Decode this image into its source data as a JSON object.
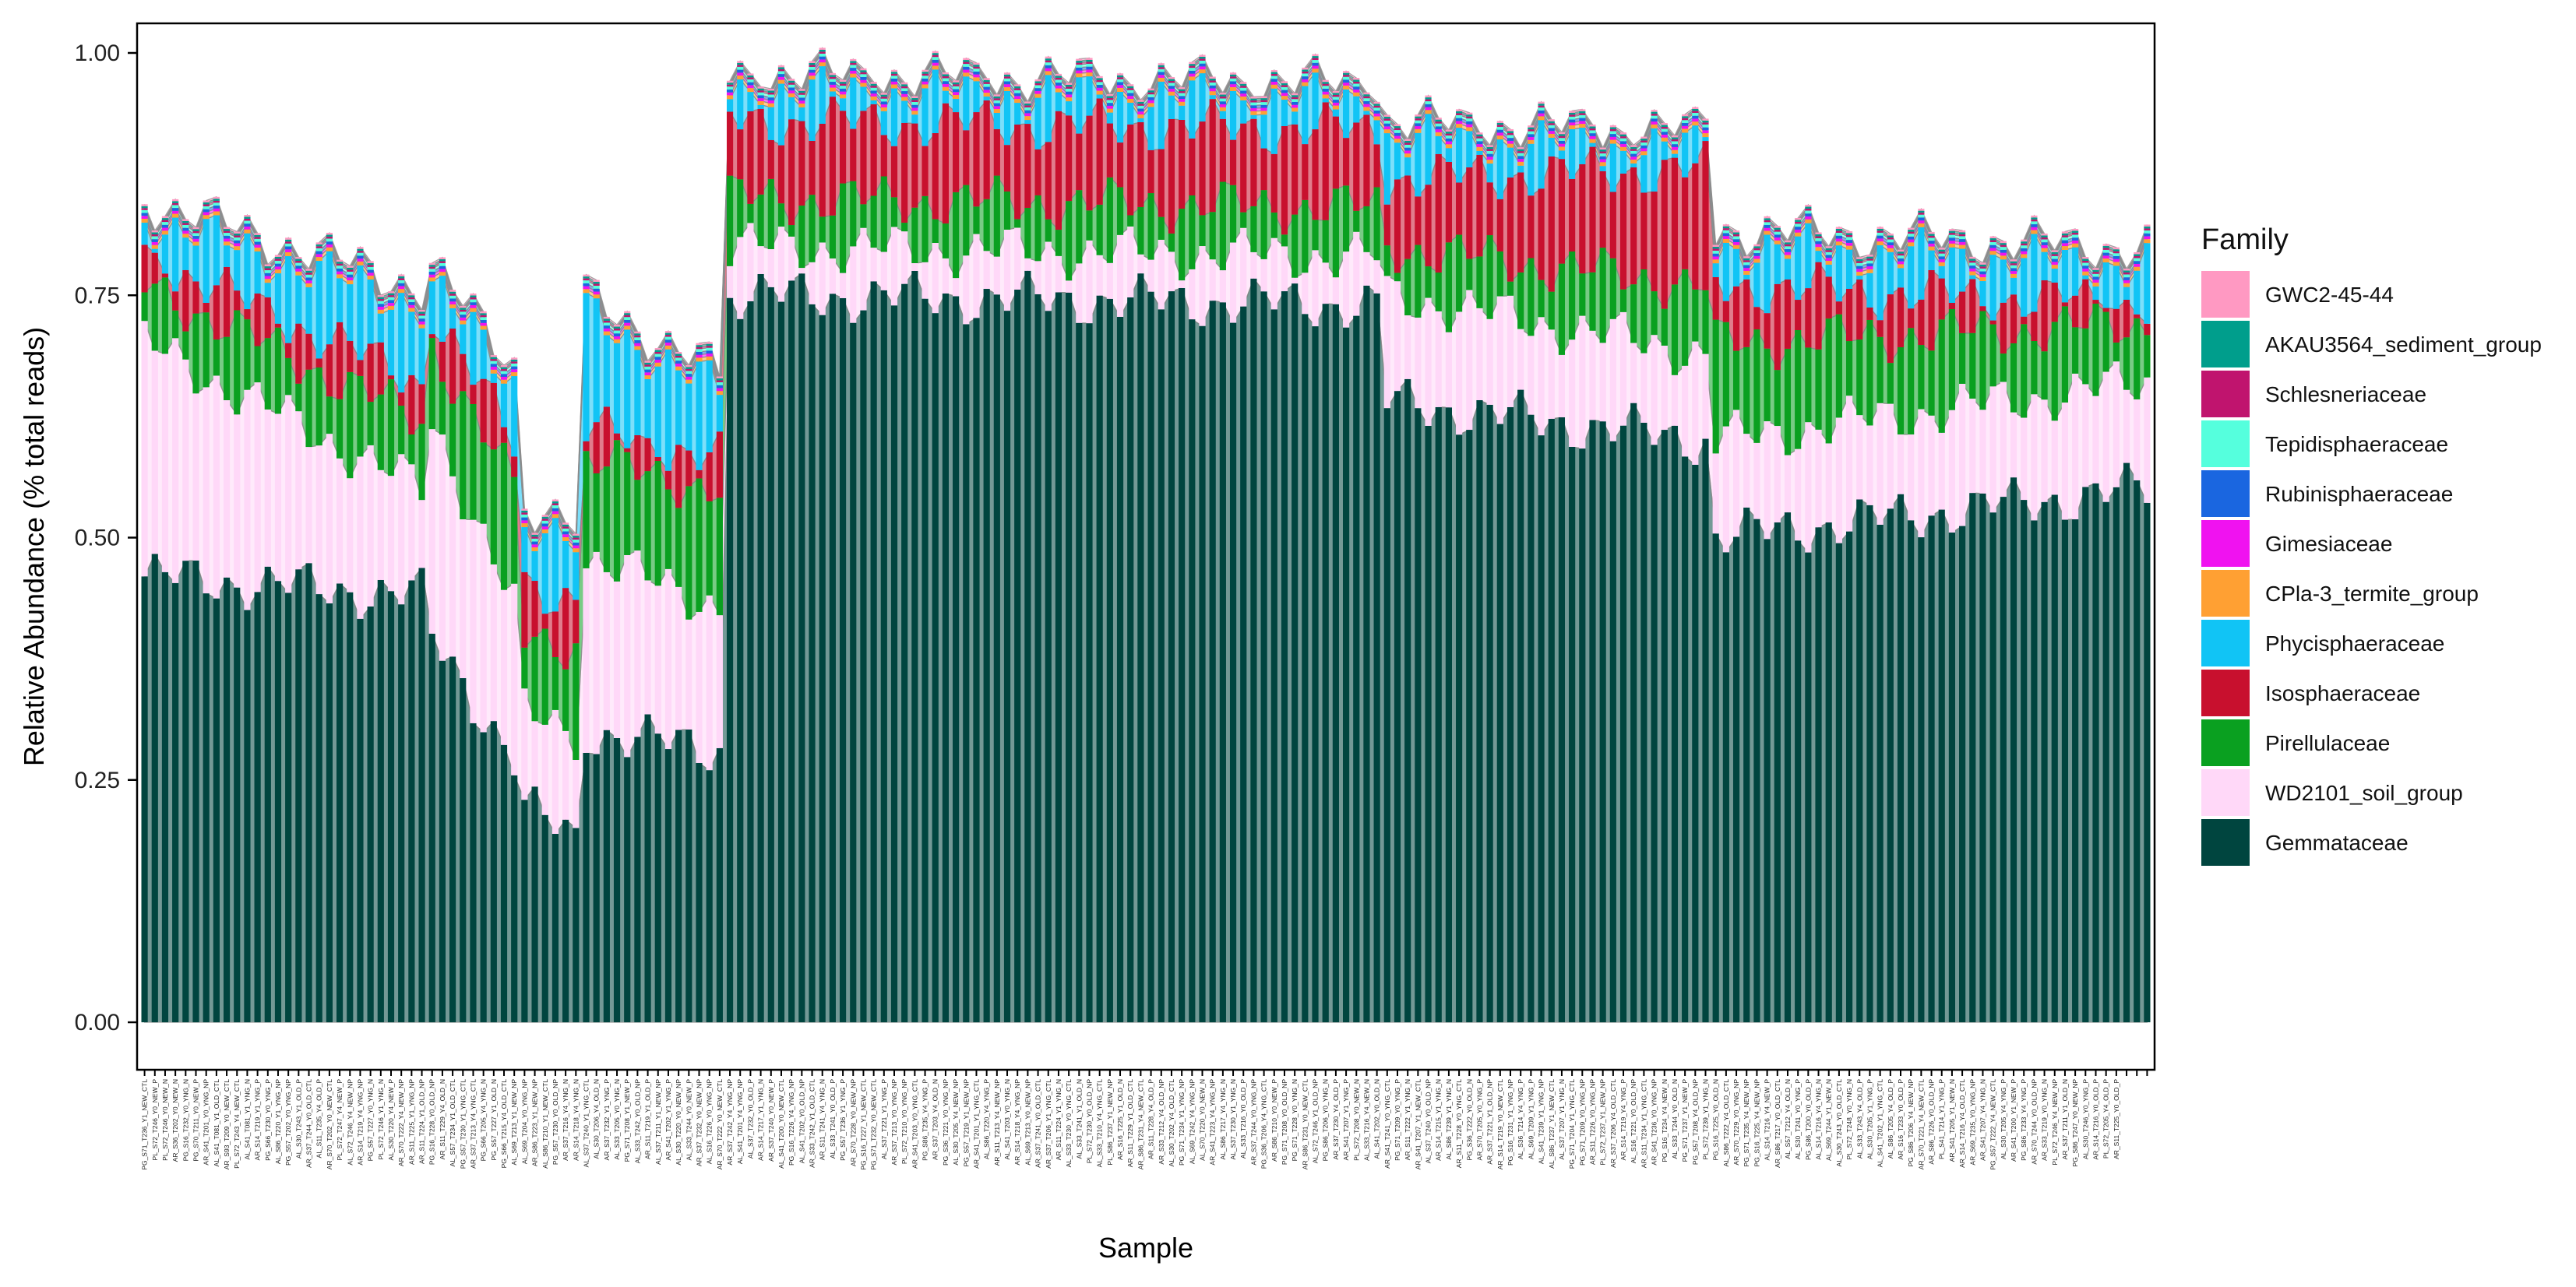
{
  "chart_data": {
    "type": "bar",
    "stacked": true,
    "title": "",
    "xlabel": "Sample",
    "ylabel": "Relative Abundance (% total reads)",
    "ylim": [
      0,
      1.03
    ],
    "yticks": [
      "0.00",
      "0.25",
      "0.50",
      "0.75",
      "1.00"
    ],
    "ytick_values": [
      0,
      0.25,
      0.5,
      0.75,
      1.0
    ],
    "grid": false,
    "legend_title": "Family",
    "legend_position": "right",
    "sample_count": 196,
    "families": [
      {
        "name": "GWC2-45-44",
        "color": "#FF99C2"
      },
      {
        "name": "AKAU3564_sediment_group",
        "color": "#009E8C"
      },
      {
        "name": "Schlesneriaceae",
        "color": "#C0146E"
      },
      {
        "name": "Tepidisphaeraceae",
        "color": "#55FFDD"
      },
      {
        "name": "Rubinisphaeraceae",
        "color": "#1A66E0"
      },
      {
        "name": "Gimesiaceae",
        "color": "#F012F0"
      },
      {
        "name": "CPla-3_termite_group",
        "color": "#FFA033"
      },
      {
        "name": "Phycisphaeraceae",
        "color": "#11C4F5"
      },
      {
        "name": "Isosphaeraceae",
        "color": "#C8102E"
      },
      {
        "name": "Pirellulaceae",
        "color": "#0AA020"
      },
      {
        "name": "WD2101_soil_group",
        "color": "#FFD8F8"
      },
      {
        "name": "Gemmataceae",
        "color": "#00453F"
      }
    ],
    "stack_order_bottom_to_top": [
      "Gemmataceae",
      "WD2101_soil_group",
      "Pirellulaceae",
      "Isosphaeraceae",
      "Phycisphaeraceae",
      "CPla-3_termite_group",
      "Gimesiaceae",
      "Rubinisphaeraceae",
      "Tepidisphaeraceae",
      "Schlesneriaceae",
      "AKAU3564_sediment_group",
      "GWC2-45-44"
    ],
    "series_profile": {
      "note_free": true,
      "segments": [
        {
          "from": 0,
          "to": 27,
          "Gemmataceae": [
            0.46,
            0.44
          ],
          "WD2101_soil_group": [
            0.7,
            0.55
          ],
          "Pirellulaceae": [
            0.76,
            0.62
          ],
          "Isosphaeraceae": [
            0.79,
            0.66
          ],
          "Phycisphaeraceae": [
            0.83,
            0.74
          ]
        },
        {
          "from": 28,
          "to": 36,
          "Gemmataceae": [
            0.4,
            0.27
          ],
          "WD2101_soil_group": [
            0.62,
            0.43
          ],
          "Pirellulaceae": [
            0.7,
            0.55
          ],
          "Isosphaeraceae": [
            0.73,
            0.6
          ],
          "Phycisphaeraceae": [
            0.76,
            0.66
          ]
        },
        {
          "from": 37,
          "to": 42,
          "Gemmataceae": [
            0.22,
            0.19
          ],
          "WD2101_soil_group": [
            0.32,
            0.3
          ],
          "Pirellulaceae": [
            0.4,
            0.39
          ],
          "Isosphaeraceae": [
            0.46,
            0.43
          ],
          "Phycisphaeraceae": [
            0.52,
            0.49
          ]
        },
        {
          "from": 43,
          "to": 56,
          "Gemmataceae": [
            0.3,
            0.28
          ],
          "WD2101_soil_group": [
            0.48,
            0.43
          ],
          "Pirellulaceae": [
            0.58,
            0.55
          ],
          "Isosphaeraceae": [
            0.61,
            0.58
          ],
          "Phycisphaeraceae": [
            0.73,
            0.65
          ]
        },
        {
          "from": 57,
          "to": 120,
          "Gemmataceae": [
            0.75,
            0.74
          ],
          "WD2101_soil_group": [
            0.8,
            0.79
          ],
          "Pirellulaceae": [
            0.85,
            0.84
          ],
          "Isosphaeraceae": [
            0.93,
            0.92
          ],
          "Phycisphaeraceae": [
            0.96,
            0.95
          ]
        },
        {
          "from": 121,
          "to": 152,
          "Gemmataceae": [
            0.64,
            0.6
          ],
          "WD2101_soil_group": [
            0.75,
            0.69
          ],
          "Pirellulaceae": [
            0.8,
            0.76
          ],
          "Isosphaeraceae": [
            0.87,
            0.88
          ],
          "Phycisphaeraceae": [
            0.91,
            0.9
          ]
        },
        {
          "from": 153,
          "to": 195,
          "Gemmataceae": [
            0.5,
            0.55
          ],
          "WD2101_soil_group": [
            0.6,
            0.66
          ],
          "Pirellulaceae": [
            0.7,
            0.72
          ],
          "Isosphaeraceae": [
            0.76,
            0.74
          ],
          "Phycisphaeraceae": [
            0.8,
            0.78
          ]
        }
      ]
    },
    "sample_labels": [
      "PG_S71_T236_Y1_NEW_CTL",
      "PL_S72_T246_Y0_NEW_P",
      "PL_S72_T246_Y0_NEW_N",
      "AR_S36_T202_Y0_NEW_N",
      "PG_S16_T232_Y0_YNG_N",
      "PG_S70_T211_Y0_NEW_P",
      "AR_S41_T201_Y0_YNG_NP",
      "AL_S41_T081_Y1_OLD_CTL",
      "AR_S93_T209_Y0_NEW_CTL",
      "PL_S72_T243_Y4_NEW_CTL",
      "AL_S41_T081_Y1_YNG_N",
      "AR_S14_T219_Y1_YNG_P",
      "PG_S66_T230_Y0_YNG_P",
      "AL_S86_T220_Y1_YNG_NP",
      "PG_S57_T202_Y0_YNG_NP",
      "AL_S30_T243_Y1_OLD_P",
      "AR_S37_T244_Y0_OLD_CTL",
      "AL_S11_T235_Y4_OLD_P",
      "AR_S70_T202_Y0_NEW_CTL",
      "PL_S72_T247_Y4_NEW_P",
      "AL_S72_T246_Y4_NEW_NP",
      "AR_S14_T219_Y4_YNG_NP",
      "PG_S57_T227_Y0_YNG_N",
      "PL_S72_T246_Y1_YNG_N",
      "AL_S30_T220_Y4_NEW_P",
      "AR_S70_T222_Y4_NEW_NP",
      "AR_S11_T225_Y1_YNG_NP",
      "AR_S11_T224_Y1_OLD_NP",
      "PG_S16_T228_Y0_OLD_NP",
      "AR_S11_T229_Y4_OLD_N",
      "AL_S57_T234_Y1_OLD_CTL",
      "PG_S57_T230_Y1_YNG_CTL",
      "AR_S37_T213_Y4_YNG_CTL",
      "PG_S66_T205_Y4_YNG_N",
      "PG_S57_T227_Y1_OLD_N",
      "PG_S66_T215_Y4_OLD_CTL",
      "AL_S69_T213_Y1_NEW_NP",
      "AL_S69_T204_Y0_YNG_NP",
      "AR_S86_T223_Y1_NEW_NP",
      "AL_S86_T210_Y1_NEW_CTL",
      "PG_S57_T230_Y0_OLD_NP",
      "AR_S37_T216_Y4_YNG_N",
      "AR_S14_T218_Y4_YNG_N",
      "AL_S37_T240_Y1_YNG_CTL",
      "AL_S30_T206_Y4_OLD_N",
      "AR_S37_T232_Y1_YNG_P",
      "AL_S33_T205_Y0_YNG_N",
      "PG_S71_T208_Y1_NEW_P",
      "AL_S33_T242_Y0_OLD_NP",
      "AR_S11_T219_Y1_OLD_P",
      "AL_S37_T211_Y1_NEW_NP",
      "AR_S41_T202_Y1_YNG_P",
      "AL_S30_T220_Y0_NEW_NP",
      "AL_S33_T244_Y0_NEW_P",
      "AR_S37_T232_Y0_NEW_NP",
      "AL_S16_T226_Y0_YNG_NP",
      "AR_S70_T222_Y0_NEW_CTL",
      "AR_S37_T242_Y4_YNG_NP",
      "AL_S41_T201_Y4_YNG_NP",
      "AL_S37_T232_Y0_OLD_P",
      "AR_S14_T217_Y1_YNG_N",
      "AR_S37_T240_Y0_NEW_P",
      "AL_S41_T200_Y0_NEW_CTL",
      "PG_S16_T226_Y4_YNG_NP",
      "AL_S41_T202_Y0_OLD_NP",
      "AR_S33_T242_Y1_OLD_CTL",
      "AR_S11_T241_Y4_YNG_N",
      "AL_S33_T241_Y0_OLD_P",
      "PG_S57_T236_Y1_YNG_P",
      "AR_S70_T228_Y0_NEW_NP",
      "PG_S16_T227_Y1_NEW_CTL",
      "PG_S71_T232_Y0_NEW_CTL",
      "AL_S37_T221_Y1_YNG_P",
      "AR_S37_T213_Y0_YNG_NP",
      "PL_S72_T210_Y0_YNG_NP",
      "AR_S41_T203_Y0_YNG_CTL",
      "PG_S86_T235_Y4_YNG_P",
      "AR_S37_T203_Y4_OLD_N",
      "PG_S36_T221_Y0_YNG_NP",
      "AL_S30_T205_Y4_NEW_NP",
      "PG_S57_T219_Y1_NEW_NP",
      "AR_S41_T201_Y1_YNG_CTL",
      "AL_S86_T220_Y4_YNG_P",
      "AR_S11_T213_Y4_NEW_NP",
      "AL_S41_T203_Y0_YNG_N",
      "AR_S14_T218_Y4_YNG_NP",
      "AL_S69_T213_Y0_NEW_NP",
      "AR_S37_T241_Y0_OLD_CTL",
      "AR_S37_T206_Y1_YNG_CTL",
      "AR_S11_T224_Y1_YNG_N",
      "AL_S33_T230_Y0_YNG_CTL",
      "AL_S33_T241_Y1_OLD_N",
      "PL_S72_T230_Y0_OLD_NP",
      "AL_S33_T210_Y4_YNG_CTL",
      "PL_S86_T237_Y1_NEW_NP",
      "AR_S16_T225_Y1_OLD_N",
      "AR_S11_T229_Y1_OLD_CTL",
      "AR_S86_T231_Y4_NEW_CTL",
      "AR_S11_T228_Y4_OLD_P",
      "AR_S33_T212_Y4_OLD_NP",
      "AL_S30_T202_Y4_OLD_CTL",
      "PG_S71_T234_Y1_YNG_NP",
      "AL_S69_T242_Y4_YNG_NP",
      "AL_S70_T220_Y0_NEW_N",
      "AR_S41_T223_Y4_YNG_NP",
      "AL_S86_T217_Y4_YNG_N",
      "AL_S37_T230_Y1_YNG_N",
      "AL_S33_T216_Y0_OLD_P",
      "AR_S37_T244_Y0_YNG_NP",
      "PG_S36_T206_Y4_YNG_CTL",
      "AR_S86_T210_Y0_NEW_P",
      "PG_S71_T208_Y0_OLD_NP",
      "PG_S71_T228_Y0_YNG_N",
      "AR_S86_T231_Y0_NEW_CTL",
      "AL_S72_T246_Y1_OLD_NP",
      "PG_S86_T206_Y0_YNG_N",
      "AR_S37_T230_Y4_OLD_P",
      "AR_S41_T207_Y1_YNG_P",
      "PL_S72_T208_Y0_NEW_N",
      "AL_S33_T216_Y4_NEW_N",
      "AL_S41_T202_Y0_OLD_N",
      "AR_S41_T241_Y0_YNG_CTL",
      "PG_S71_T209_Y0_YNG_P",
      "AR_S11_T222_Y1_YNG_N",
      "AR_S41_T207_Y1_NEW_CTL",
      "AL_S37_T240_Y0_OLD_NP",
      "AR_S14_T215_Y1_YNG_N",
      "AL_S86_T239_Y1_YNG_N",
      "AR_S11_T228_Y0_YNG_CTL",
      "PG_S36_T222_Y0_OLD_N",
      "AR_S70_T205_Y0_YNG_P",
      "AR_S37_T221_Y1_OLD_NP",
      "AR_S14_T219_Y0_NEW_CTL",
      "PG_S16_T231_Y1_YNG_NP",
      "AL_S36_T214_Y4_YNG_P",
      "AL_S69_T209_Y1_YNG_P",
      "AL_S41_T239_Y1_YNG_NP",
      "AL_S86_T237_Y1_NEW_CTL",
      "AL_S37_T207_Y1_YNG_N",
      "PG_S71_T204_Y1_YNG_CTL",
      "PG_S71_T209_Y0_YNG_NP",
      "AR_S11_T226_Y0_YNG_NP",
      "PL_S72_T237_Y1_NEW_NP",
      "AR_S37_T206_Y4_OLD_CTL",
      "AR_S14_T219_Y4_YNG_P",
      "AL_S16_T221_Y0_OLD_NP",
      "AR_S11_T234_Y1_YNG_CTL",
      "AR_S41_T236_Y0_YNG_NP",
      "PG_S16_T234_Y4_NEW_N",
      "AL_S33_T244_Y0_OLD_N",
      "PG_S71_T237_Y1_NEW_P",
      "PG_S57_T208_Y4_OLD_NP",
      "PL_S72_T239_Y1_YNG_N",
      "PG_S16_T225_Y0_OLD_N",
      "AL_S86_T222_Y4_OLD_CTL",
      "AR_S70_T229_Y0_YNG_NP",
      "PG_S71_T235_Y4_NEW_NP",
      "PG_S16_T225_Y4_NEW_NP",
      "AL_S14_T216_Y4_NEW_P",
      "AR_S86_T217_Y0_OLD_CTL",
      "AL_S57_T212_Y4_OLD_N",
      "AL_S30_T241_Y0_YNG_P",
      "PG_S86_T200_Y0_OLD_P",
      "AL_S14_T216_Y4_YNG_N",
      "AL_S69_T244_Y1_NEW_N",
      "AL_S30_T243_Y0_OLD_CTL",
      "PL_S72_T248_Y0_YNG_N",
      "AL_S33_T243_Y4_OLD_P",
      "AL_S30_T205_Y1_YNG_P",
      "AL_S41_T202_Y1_YNG_CTL",
      "AL_S86_T205_Y4_OLD_P",
      "AR_S16_T233_Y0_OLD_P",
      "PG_S86_T206_Y4_NEW_NP",
      "AR_S70_T221_Y4_NEW_CTL",
      "AR_S86_T226_Y0_OLD_NP",
      "PL_S41_T214_Y1_YNG_P",
      "AR_S41_T205_Y1_NEW_N",
      "AR_S14_T216_Y4_OLD_CTL",
      "AR_S69_T235_Y0_YNG_NP",
      "AR_S41_T207_Y4_YNG_N",
      "PG_S57_T222_Y4_NEW_CTL",
      "AL_S30_T205_Y4_YNG_P",
      "AR_S41_T200_Y1_NEW_P",
      "PG_S86_T233_Y4_YNG_P",
      "AR_S70_T244_Y0_OLD_NP",
      "AR_S33_T219_Y0_YNG_N",
      "PL_S72_T246_Y4_NEW_NP",
      "AR_S37_T211_Y1_OLD_N",
      "PG_S86_T247_Y0_NEW_NP",
      "AL_S30_T246_Y0_YNG_P",
      "AR_S14_T216_Y0_OLD_P",
      "PL_S72_T205_Y4_OLD_P",
      "AR_S11_T225_Y0_OLD_P"
    ]
  }
}
